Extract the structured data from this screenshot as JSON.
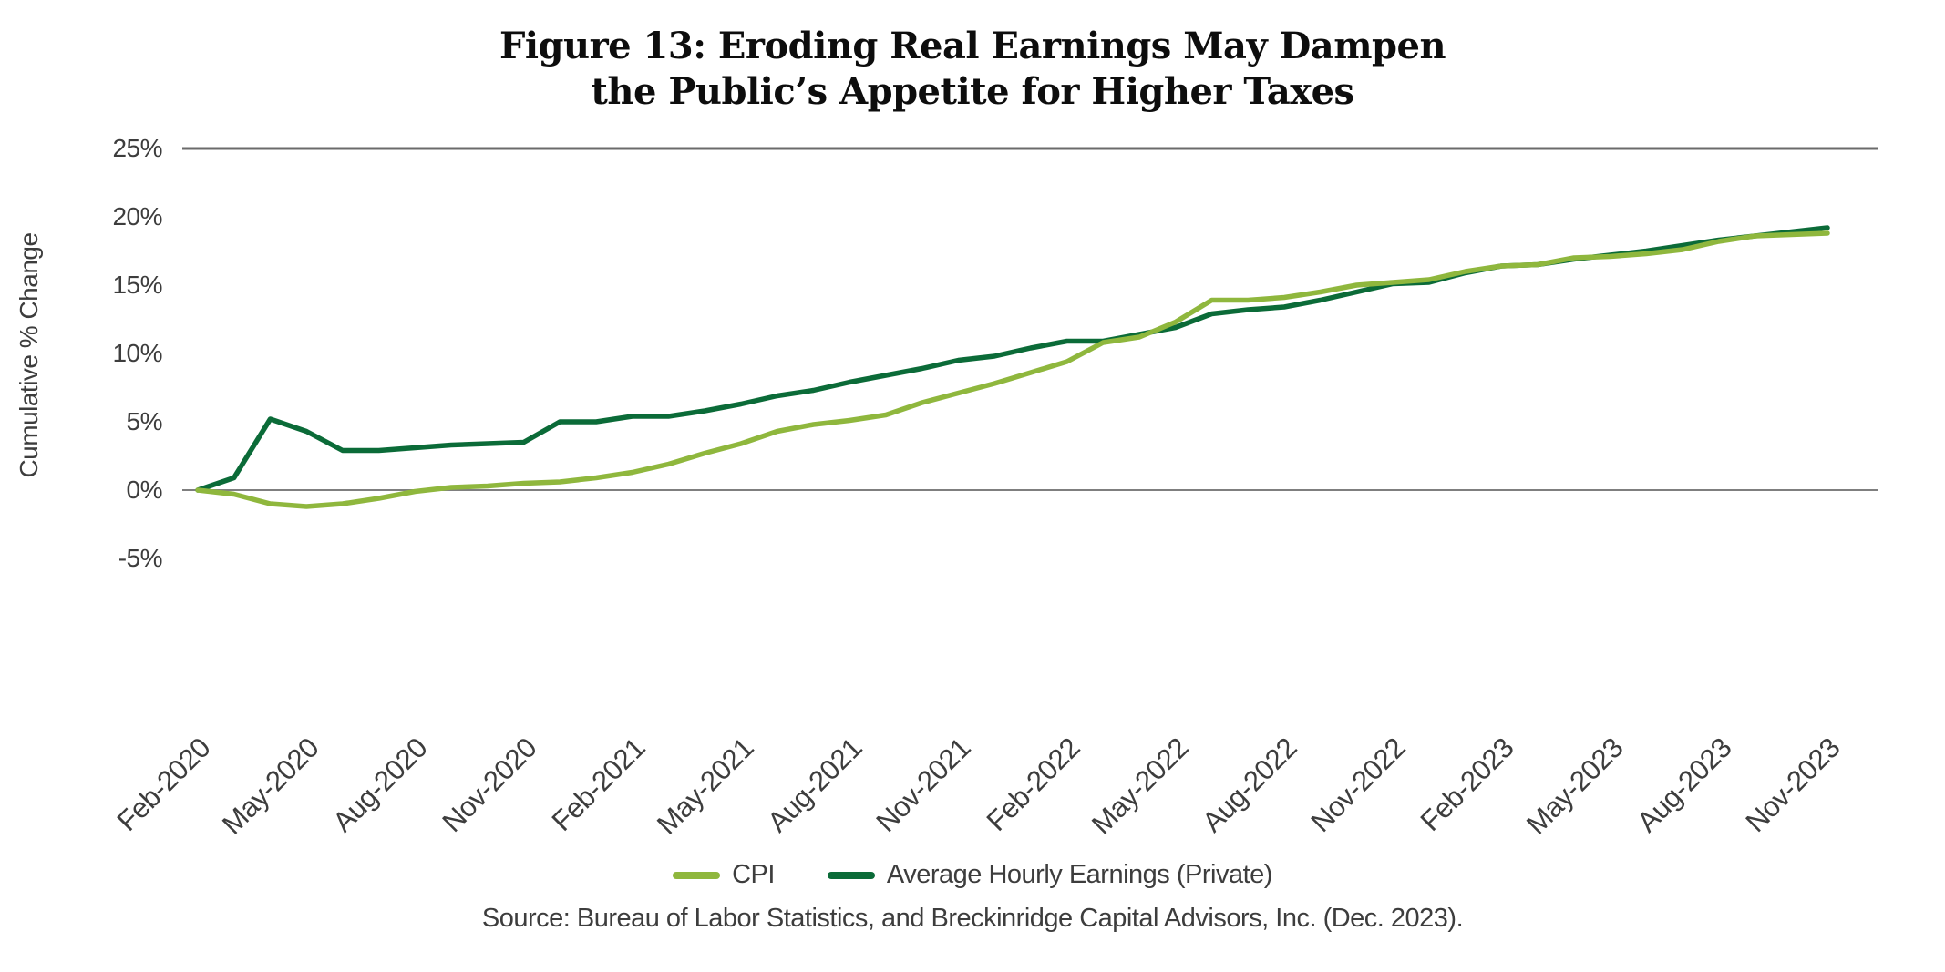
{
  "title": {
    "line1": "Figure 13: Eroding Real Earnings May Dampen",
    "line2": "the Public’s Appetite for Higher Taxes"
  },
  "y_axis": {
    "label": "Cumulative % Change",
    "ticks": [
      "25%",
      "20%",
      "15%",
      "10%",
      "5%",
      "0%",
      "-5%"
    ]
  },
  "x_axis": {
    "tick_labels": [
      "Feb-2020",
      "May-2020",
      "Aug-2020",
      "Nov-2020",
      "Feb-2021",
      "May-2021",
      "Aug-2021",
      "Nov-2021",
      "Feb-2022",
      "May-2022",
      "Aug-2022",
      "Nov-2022",
      "Feb-2023",
      "May-2023",
      "Aug-2023",
      "Nov-2023"
    ]
  },
  "legend": {
    "items": [
      {
        "label": "CPI",
        "color": "#8FB73D"
      },
      {
        "label": "Average Hourly Earnings (Private)",
        "color": "#0B6B38"
      }
    ]
  },
  "source": "Source: Bureau of Labor Statistics, and Breckinridge Capital Advisors, Inc. (Dec. 2023).",
  "colors": {
    "cpi_line": "#8FB73D",
    "ahe_line": "#0B6B38",
    "zero_gridline": "#7f7f7f",
    "top_gridline": "#6b6b6b",
    "axis_text": "#3d3d3d",
    "title_text": "#0d0d0d"
  },
  "chart_data": {
    "type": "line",
    "title": "Figure 13: Eroding Real Earnings May Dampen the Public’s Appetite for Higher Taxes",
    "xlabel": "",
    "ylabel": "Cumulative % Change",
    "ylim": [
      -5,
      25
    ],
    "y_tick_values": [
      25,
      20,
      15,
      10,
      5,
      0,
      -5
    ],
    "grid": "horizontal lines at 25% (top border) and 0% only",
    "legend_position": "bottom",
    "x": [
      "Feb-2020",
      "Mar-2020",
      "Apr-2020",
      "May-2020",
      "Jun-2020",
      "Jul-2020",
      "Aug-2020",
      "Sep-2020",
      "Oct-2020",
      "Nov-2020",
      "Dec-2020",
      "Jan-2021",
      "Feb-2021",
      "Mar-2021",
      "Apr-2021",
      "May-2021",
      "Jun-2021",
      "Jul-2021",
      "Aug-2021",
      "Sep-2021",
      "Oct-2021",
      "Nov-2021",
      "Dec-2021",
      "Jan-2022",
      "Feb-2022",
      "Mar-2022",
      "Apr-2022",
      "May-2022",
      "Jun-2022",
      "Jul-2022",
      "Aug-2022",
      "Sep-2022",
      "Oct-2022",
      "Nov-2022",
      "Dec-2022",
      "Jan-2023",
      "Feb-2023",
      "Mar-2023",
      "Apr-2023",
      "May-2023",
      "Jun-2023",
      "Jul-2023",
      "Aug-2023",
      "Sep-2023",
      "Oct-2023",
      "Nov-2023"
    ],
    "series": [
      {
        "name": "CPI",
        "color": "#8FB73D",
        "values": [
          0.0,
          -0.3,
          -1.0,
          -1.2,
          -1.0,
          -0.6,
          -0.1,
          0.2,
          0.3,
          0.5,
          0.6,
          0.9,
          1.3,
          1.9,
          2.7,
          3.4,
          4.3,
          4.8,
          5.1,
          5.5,
          6.4,
          7.1,
          7.8,
          8.6,
          9.4,
          10.8,
          11.2,
          12.3,
          13.9,
          13.9,
          14.1,
          14.5,
          15.0,
          15.2,
          15.4,
          16.0,
          16.4,
          16.5,
          17.0,
          17.1,
          17.3,
          17.6,
          18.2,
          18.6,
          18.7,
          18.8
        ]
      },
      {
        "name": "Average Hourly Earnings (Private)",
        "color": "#0B6B38",
        "values": [
          0.0,
          0.9,
          5.2,
          4.3,
          2.9,
          2.9,
          3.1,
          3.3,
          3.4,
          3.5,
          5.0,
          5.0,
          5.4,
          5.4,
          5.8,
          6.3,
          6.9,
          7.3,
          7.9,
          8.4,
          8.9,
          9.5,
          9.8,
          10.4,
          10.9,
          10.9,
          11.4,
          11.9,
          12.9,
          13.2,
          13.4,
          13.9,
          14.5,
          15.1,
          15.2,
          15.9,
          16.4,
          16.5,
          16.9,
          17.2,
          17.5,
          17.9,
          18.3,
          18.6,
          18.9,
          19.2
        ]
      }
    ]
  },
  "layout_note": "line chart, no bottom axis spine, x tick labels rotated 45 degrees"
}
